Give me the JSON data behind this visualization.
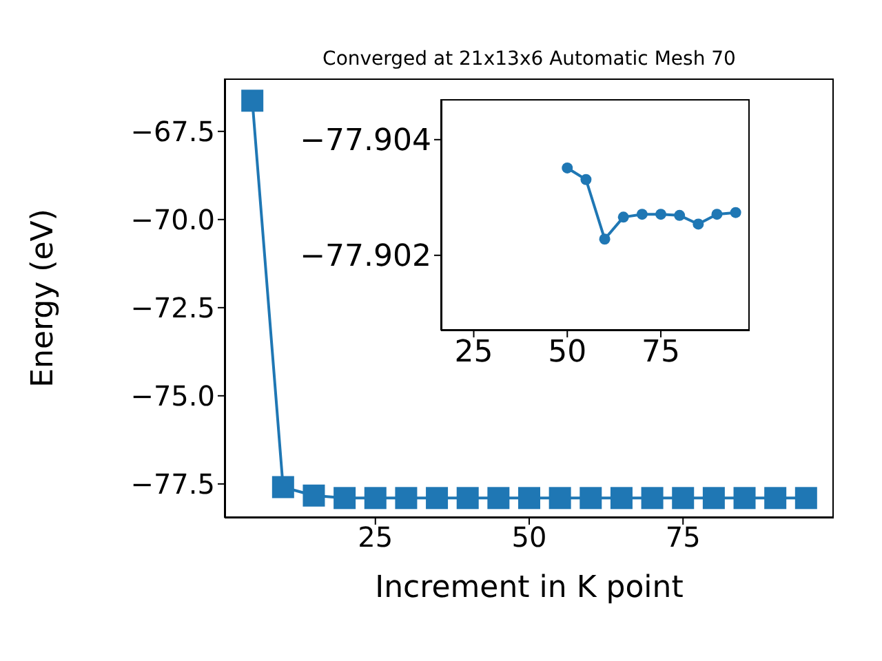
{
  "chart_data": [
    {
      "type": "line",
      "title": "Converged at 21x13x6 Automatic Mesh 70",
      "xlabel": "Increment in K point",
      "ylabel": "Energy (eV)",
      "marker": "square",
      "x": [
        5,
        10,
        15,
        20,
        25,
        30,
        35,
        40,
        45,
        50,
        55,
        60,
        65,
        70,
        75,
        80,
        85,
        90,
        95
      ],
      "series": [
        {
          "color": "#1f77b4",
          "values": [
            -66.63,
            -77.59,
            -77.83,
            -77.9,
            -77.9,
            -77.9,
            -77.9,
            -77.9,
            -77.9,
            -77.9,
            -77.9,
            -77.9,
            -77.9,
            -77.9,
            -77.9,
            -77.9,
            -77.9,
            -77.9,
            -77.9
          ]
        }
      ],
      "xlim": [
        0.5,
        99.5
      ],
      "ylim": [
        -78.46,
        -66.0
      ],
      "xticks": [
        25,
        50,
        75
      ],
      "yticks": [
        {
          "value": -67.5,
          "label": "−67.5"
        },
        {
          "value": -70,
          "label": "−70.0"
        },
        {
          "value": -72.5,
          "label": "−72.5"
        },
        {
          "value": -75,
          "label": "−75.0"
        },
        {
          "value": -77.5,
          "label": "−77.5"
        }
      ]
    },
    {
      "type": "line",
      "marker": "circle",
      "x": [
        50,
        55,
        60,
        65,
        70,
        75,
        80,
        85,
        90,
        95
      ],
      "series": [
        {
          "color": "#1f77b4",
          "values": [
            -77.90351,
            -77.90331,
            -77.90228,
            -77.90266,
            -77.90271,
            -77.90271,
            -77.90269,
            -77.90254,
            -77.90271,
            -77.90274
          ]
        }
      ],
      "xlim": [
        16.25,
        98.75
      ],
      "ylim": [
        -77.9007,
        -77.9047
      ],
      "xticks": [
        25,
        50,
        75
      ],
      "yticks": [
        {
          "value": -77.904,
          "label": "−77.904"
        },
        {
          "value": -77.902,
          "label": "−77.902"
        }
      ]
    }
  ]
}
